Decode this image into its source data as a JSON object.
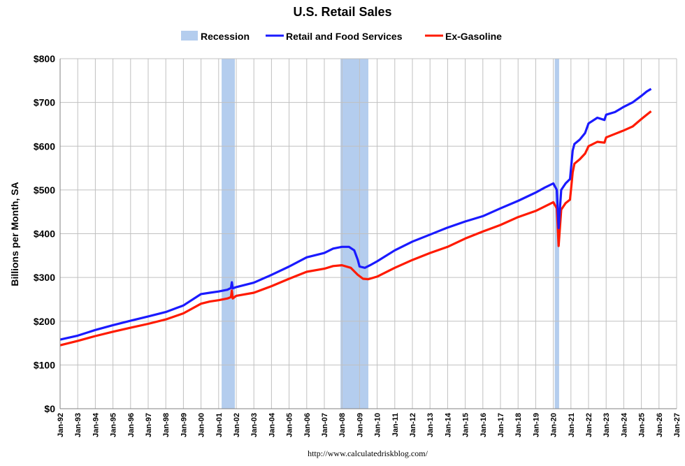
{
  "chart_data": {
    "type": "line",
    "title": "U.S. Retail Sales",
    "ylabel": "Billions per Month, SA",
    "xlabel": "",
    "source": "http://www.calculatedriskblog.com/",
    "ylim": [
      0,
      800
    ],
    "yticks": [
      "$0",
      "$100",
      "$200",
      "$300",
      "$400",
      "$500",
      "$600",
      "$700",
      "$800"
    ],
    "xlim": [
      1992.0,
      2027.0
    ],
    "xticks": [
      "Jan-92",
      "Jan-93",
      "Jan-94",
      "Jan-95",
      "Jan-96",
      "Jan-97",
      "Jan-98",
      "Jan-99",
      "Jan-00",
      "Jan-01",
      "Jan-02",
      "Jan-03",
      "Jan-04",
      "Jan-05",
      "Jan-06",
      "Jan-07",
      "Jan-08",
      "Jan-09",
      "Jan-10",
      "Jan-11",
      "Jan-12",
      "Jan-13",
      "Jan-14",
      "Jan-15",
      "Jan-16",
      "Jan-17",
      "Jan-18",
      "Jan-19",
      "Jan-20",
      "Jan-21",
      "Jan-22",
      "Jan-23",
      "Jan-24",
      "Jan-25",
      "Jan-26",
      "Jan-27"
    ],
    "grid": true,
    "legend": {
      "position": "top",
      "items": [
        "Recession",
        "Retail and Food Services",
        "Ex-Gasoline"
      ]
    },
    "recessions": [
      {
        "start": 2001.17,
        "end": 2001.92
      },
      {
        "start": 2007.92,
        "end": 2009.5
      },
      {
        "start": 2020.08,
        "end": 2020.33
      }
    ],
    "series": [
      {
        "name": "Retail and Food Services",
        "color": "#1a1aff",
        "points": [
          [
            1992.0,
            158
          ],
          [
            1993.0,
            167
          ],
          [
            1994.0,
            180
          ],
          [
            1995.0,
            191
          ],
          [
            1996.0,
            201
          ],
          [
            1997.0,
            211
          ],
          [
            1998.0,
            221
          ],
          [
            1999.0,
            236
          ],
          [
            2000.0,
            262
          ],
          [
            2000.5,
            265
          ],
          [
            2001.0,
            268
          ],
          [
            2001.5,
            272
          ],
          [
            2001.7,
            276
          ],
          [
            2001.75,
            289
          ],
          [
            2001.8,
            275
          ],
          [
            2002.0,
            278
          ],
          [
            2003.0,
            288
          ],
          [
            2004.0,
            306
          ],
          [
            2005.0,
            325
          ],
          [
            2006.0,
            346
          ],
          [
            2007.0,
            356
          ],
          [
            2007.5,
            366
          ],
          [
            2008.0,
            370
          ],
          [
            2008.4,
            370
          ],
          [
            2008.7,
            362
          ],
          [
            2008.9,
            340
          ],
          [
            2009.0,
            325
          ],
          [
            2009.3,
            322
          ],
          [
            2009.6,
            328
          ],
          [
            2010.0,
            337
          ],
          [
            2011.0,
            362
          ],
          [
            2012.0,
            382
          ],
          [
            2013.0,
            398
          ],
          [
            2014.0,
            414
          ],
          [
            2015.0,
            428
          ],
          [
            2016.0,
            440
          ],
          [
            2017.0,
            458
          ],
          [
            2018.0,
            475
          ],
          [
            2019.0,
            494
          ],
          [
            2019.5,
            505
          ],
          [
            2020.0,
            515
          ],
          [
            2020.2,
            500
          ],
          [
            2020.3,
            413
          ],
          [
            2020.45,
            500
          ],
          [
            2020.7,
            515
          ],
          [
            2020.95,
            525
          ],
          [
            2021.1,
            590
          ],
          [
            2021.2,
            605
          ],
          [
            2021.5,
            615
          ],
          [
            2021.8,
            630
          ],
          [
            2022.0,
            652
          ],
          [
            2022.5,
            665
          ],
          [
            2022.9,
            660
          ],
          [
            2023.0,
            672
          ],
          [
            2023.5,
            678
          ],
          [
            2024.0,
            690
          ],
          [
            2024.5,
            700
          ],
          [
            2025.0,
            715
          ],
          [
            2025.3,
            725
          ],
          [
            2025.55,
            731
          ]
        ]
      },
      {
        "name": "Ex-Gasoline",
        "color": "#ff1a00",
        "points": [
          [
            1992.0,
            145
          ],
          [
            1993.0,
            155
          ],
          [
            1994.0,
            166
          ],
          [
            1995.0,
            176
          ],
          [
            1996.0,
            185
          ],
          [
            1997.0,
            194
          ],
          [
            1998.0,
            204
          ],
          [
            1999.0,
            218
          ],
          [
            2000.0,
            240
          ],
          [
            2000.5,
            245
          ],
          [
            2001.0,
            248
          ],
          [
            2001.5,
            252
          ],
          [
            2001.7,
            255
          ],
          [
            2001.75,
            270
          ],
          [
            2001.8,
            252
          ],
          [
            2002.0,
            258
          ],
          [
            2003.0,
            265
          ],
          [
            2004.0,
            280
          ],
          [
            2005.0,
            297
          ],
          [
            2006.0,
            313
          ],
          [
            2007.0,
            320
          ],
          [
            2007.5,
            326
          ],
          [
            2008.0,
            328
          ],
          [
            2008.5,
            322
          ],
          [
            2008.9,
            306
          ],
          [
            2009.2,
            297
          ],
          [
            2009.5,
            296
          ],
          [
            2010.0,
            302
          ],
          [
            2011.0,
            322
          ],
          [
            2012.0,
            340
          ],
          [
            2013.0,
            356
          ],
          [
            2014.0,
            370
          ],
          [
            2015.0,
            389
          ],
          [
            2016.0,
            405
          ],
          [
            2017.0,
            420
          ],
          [
            2018.0,
            438
          ],
          [
            2019.0,
            452
          ],
          [
            2019.5,
            462
          ],
          [
            2020.0,
            472
          ],
          [
            2020.2,
            458
          ],
          [
            2020.3,
            372
          ],
          [
            2020.45,
            455
          ],
          [
            2020.7,
            470
          ],
          [
            2020.95,
            478
          ],
          [
            2021.1,
            540
          ],
          [
            2021.2,
            560
          ],
          [
            2021.5,
            570
          ],
          [
            2021.8,
            583
          ],
          [
            2022.0,
            600
          ],
          [
            2022.5,
            610
          ],
          [
            2022.9,
            608
          ],
          [
            2023.0,
            620
          ],
          [
            2023.5,
            628
          ],
          [
            2024.0,
            636
          ],
          [
            2024.5,
            645
          ],
          [
            2025.0,
            662
          ],
          [
            2025.3,
            672
          ],
          [
            2025.55,
            680
          ]
        ]
      }
    ]
  }
}
